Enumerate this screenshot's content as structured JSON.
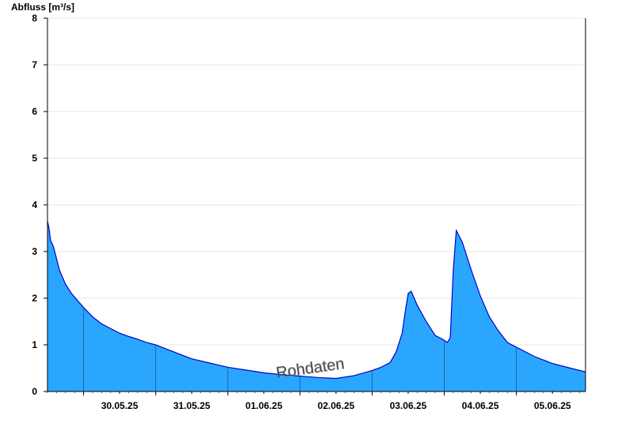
{
  "chart_data": {
    "type": "area",
    "ylabel": "Abfluss [m³/s]",
    "ylim": [
      0,
      8
    ],
    "yticks": [
      0,
      1,
      2,
      3,
      4,
      5,
      6,
      7,
      8
    ],
    "xlim": [
      "29.05.25 12:00",
      "05.06.25 23:00"
    ],
    "xtick_labels": [
      "30.05.25",
      "31.05.25",
      "01.06.25",
      "02.06.25",
      "03.06.25",
      "04.06.25",
      "05.06.25"
    ],
    "day_boundaries": [
      "30.05.25 00:00",
      "31.05.25 00:00",
      "01.06.25 00:00",
      "02.06.25 00:00",
      "03.06.25 00:00",
      "04.06.25 00:00",
      "05.06.25 00:00"
    ],
    "grid": "horizontal",
    "fill_color": "#2aa6ff",
    "line_color": "#0000cc",
    "watermark": "Rohdaten",
    "series": [
      {
        "x": [
          "29.05.25 12:00",
          "29.05.25 12:30",
          "29.05.25 13:00",
          "29.05.25 14:00",
          "29.05.25 15:00",
          "29.05.25 16:00",
          "29.05.25 18:00",
          "29.05.25 20:00",
          "29.05.25 22:00",
          "30.05.25 00:00",
          "30.05.25 03:00",
          "30.05.25 06:00",
          "30.05.25 09:00",
          "30.05.25 12:00",
          "30.05.25 15:00",
          "30.05.25 18:00",
          "30.05.25 21:00",
          "31.05.25 00:00",
          "31.05.25 04:00",
          "31.05.25 08:00",
          "31.05.25 12:00",
          "31.05.25 16:00",
          "31.05.25 20:00",
          "01.06.25 00:00",
          "01.06.25 06:00",
          "01.06.25 12:00",
          "01.06.25 18:00",
          "02.06.25 00:00",
          "02.06.25 06:00",
          "02.06.25 12:00",
          "02.06.25 18:00",
          "03.06.25 00:00",
          "03.06.25 03:00",
          "03.06.25 06:00",
          "03.06.25 08:00",
          "03.06.25 10:00",
          "03.06.25 11:00",
          "03.06.25 12:00",
          "03.06.25 13:00",
          "03.06.25 15:00",
          "03.06.25 18:00",
          "03.06.25 21:00",
          "04.06.25 00:00",
          "04.06.25 01:00",
          "04.06.25 02:00",
          "04.06.25 03:00",
          "04.06.25 04:00",
          "04.06.25 06:00",
          "04.06.25 09:00",
          "04.06.25 12:00",
          "04.06.25 15:00",
          "04.06.25 18:00",
          "04.06.25 21:00",
          "05.06.25 00:00",
          "05.06.25 06:00",
          "05.06.25 12:00",
          "05.06.25 18:00",
          "05.06.25 23:00"
        ],
        "y": [
          3.65,
          3.5,
          3.25,
          3.1,
          2.85,
          2.6,
          2.3,
          2.1,
          1.95,
          1.8,
          1.6,
          1.45,
          1.35,
          1.25,
          1.18,
          1.12,
          1.05,
          1.0,
          0.9,
          0.8,
          0.7,
          0.64,
          0.58,
          0.52,
          0.46,
          0.4,
          0.36,
          0.33,
          0.3,
          0.28,
          0.34,
          0.45,
          0.52,
          0.62,
          0.85,
          1.25,
          1.7,
          2.1,
          2.15,
          1.85,
          1.5,
          1.2,
          1.1,
          1.05,
          1.15,
          2.6,
          3.45,
          3.2,
          2.6,
          2.05,
          1.6,
          1.3,
          1.05,
          0.95,
          0.75,
          0.6,
          0.5,
          0.42
        ]
      }
    ]
  }
}
